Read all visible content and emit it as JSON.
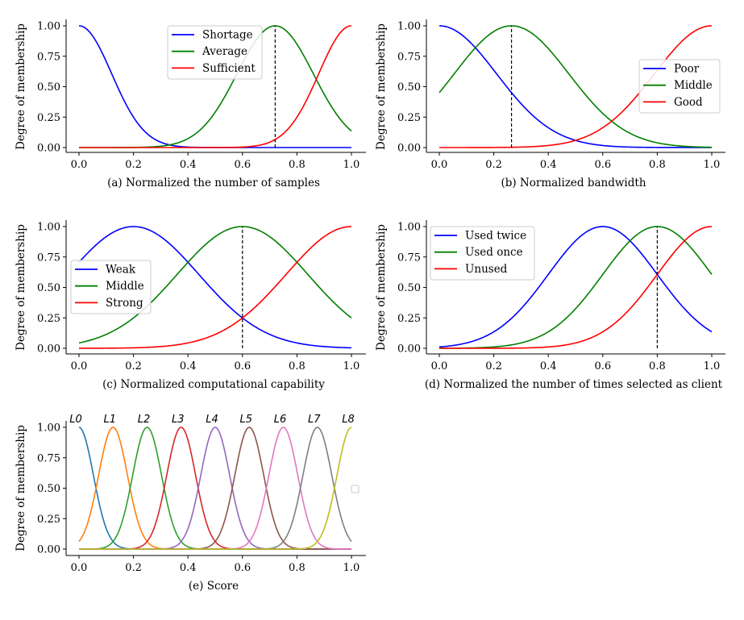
{
  "colors": {
    "blue": "#0000ff",
    "green": "#008000",
    "red": "#ff0000"
  },
  "chart_data": [
    {
      "id": "a",
      "type": "line",
      "xlabel": "(a) Normalized the number of samples",
      "ylabel": "Degree of membership",
      "xlim": [
        0,
        1
      ],
      "ylim": [
        0,
        1
      ],
      "xticks": [
        "0.0",
        "0.2",
        "0.4",
        "0.6",
        "0.8",
        "1.0"
      ],
      "yticks": [
        "0.00",
        "0.25",
        "0.50",
        "0.75",
        "1.00"
      ],
      "legend": "top-center",
      "marker_x": 0.72,
      "series": [
        {
          "name": "Shortage",
          "color": "#0000ff",
          "shape": "gaussian",
          "center": 0.0,
          "sigma": 0.12
        },
        {
          "name": "Average",
          "color": "#008000",
          "shape": "gaussian",
          "center": 0.72,
          "sigma": 0.14
        },
        {
          "name": "Sufficient",
          "color": "#ff0000",
          "shape": "gaussian",
          "center": 1.0,
          "sigma": 0.12
        }
      ]
    },
    {
      "id": "b",
      "type": "line",
      "xlabel": "(b) Normalized bandwidth",
      "ylabel": "Degree of membership",
      "xlim": [
        0,
        1
      ],
      "ylim": [
        0,
        1
      ],
      "xticks": [
        "0.0",
        "0.2",
        "0.4",
        "0.6",
        "0.8",
        "1.0"
      ],
      "yticks": [
        "0.00",
        "0.25",
        "0.50",
        "0.75",
        "1.00"
      ],
      "legend": "center-right",
      "marker_x": 0.265,
      "series": [
        {
          "name": "Poor",
          "color": "#0000ff",
          "shape": "gaussian",
          "center": 0.0,
          "sigma": 0.21
        },
        {
          "name": "Middle",
          "color": "#008000",
          "shape": "gaussian",
          "center": 0.265,
          "sigma": 0.21
        },
        {
          "name": "Good",
          "color": "#ff0000",
          "shape": "gaussian",
          "center": 1.0,
          "sigma": 0.21
        }
      ]
    },
    {
      "id": "c",
      "type": "line",
      "xlabel": "(c) Normalized computational capability",
      "ylabel": "Degree of membership",
      "xlim": [
        0,
        1
      ],
      "ylim": [
        0,
        1
      ],
      "xticks": [
        "0.0",
        "0.2",
        "0.4",
        "0.6",
        "0.8",
        "1.0"
      ],
      "yticks": [
        "0.00",
        "0.25",
        "0.50",
        "0.75",
        "1.00"
      ],
      "legend": "center-left",
      "marker_x": 0.6,
      "series": [
        {
          "name": "Weak",
          "color": "#0000ff",
          "shape": "gaussian",
          "center": 0.2,
          "sigma": 0.24
        },
        {
          "name": "Middle",
          "color": "#008000",
          "shape": "gaussian",
          "center": 0.6,
          "sigma": 0.24
        },
        {
          "name": "Strong",
          "color": "#ff0000",
          "shape": "gaussian",
          "center": 1.0,
          "sigma": 0.24
        }
      ]
    },
    {
      "id": "d",
      "type": "line",
      "xlabel": "(d) Normalized the number of times selected as client",
      "ylabel": "Degree of membership",
      "xlim": [
        0,
        1
      ],
      "ylim": [
        0,
        1
      ],
      "xticks": [
        "0.0",
        "0.2",
        "0.4",
        "0.6",
        "0.8",
        "1.0"
      ],
      "yticks": [
        "0.00",
        "0.25",
        "0.50",
        "0.75",
        "1.00"
      ],
      "legend": "top-left",
      "marker_x": 0.8,
      "series": [
        {
          "name": "Used twice",
          "color": "#0000ff",
          "shape": "gaussian",
          "center": 0.6,
          "sigma": 0.2
        },
        {
          "name": "Used once",
          "color": "#008000",
          "shape": "gaussian",
          "center": 0.8,
          "sigma": 0.2
        },
        {
          "name": "Unused",
          "color": "#ff0000",
          "shape": "gaussian",
          "center": 1.0,
          "sigma": 0.2
        }
      ]
    },
    {
      "id": "e",
      "type": "line",
      "xlabel": "(e) Score",
      "ylabel": "Degree of membership",
      "xlim": [
        0,
        1
      ],
      "ylim": [
        0,
        1
      ],
      "xticks": [
        "0.0",
        "0.2",
        "0.4",
        "0.6",
        "0.8",
        "1.0"
      ],
      "yticks": [
        "0.00",
        "0.25",
        "0.50",
        "0.75",
        "1.00"
      ],
      "legend": "center-right",
      "peak_labels": [
        "L0",
        "L1",
        "L2",
        "L3",
        "L4",
        "L5",
        "L6",
        "L7",
        "L8"
      ],
      "series": [
        {
          "color": "#1f77b4",
          "shape": "gaussian",
          "center": 0.0,
          "sigma": 0.053
        },
        {
          "color": "#ff7f0e",
          "shape": "gaussian",
          "center": 0.125,
          "sigma": 0.053
        },
        {
          "color": "#2ca02c",
          "shape": "gaussian",
          "center": 0.25,
          "sigma": 0.053
        },
        {
          "color": "#d62728",
          "shape": "gaussian",
          "center": 0.375,
          "sigma": 0.053
        },
        {
          "color": "#9467bd",
          "shape": "gaussian",
          "center": 0.5,
          "sigma": 0.053
        },
        {
          "color": "#8c564b",
          "shape": "gaussian",
          "center": 0.625,
          "sigma": 0.053
        },
        {
          "color": "#e377c2",
          "shape": "gaussian",
          "center": 0.75,
          "sigma": 0.053
        },
        {
          "color": "#7f7f7f",
          "shape": "gaussian",
          "center": 0.875,
          "sigma": 0.053
        },
        {
          "color": "#bcbd22",
          "shape": "gaussian",
          "center": 1.0,
          "sigma": 0.053
        }
      ]
    }
  ]
}
